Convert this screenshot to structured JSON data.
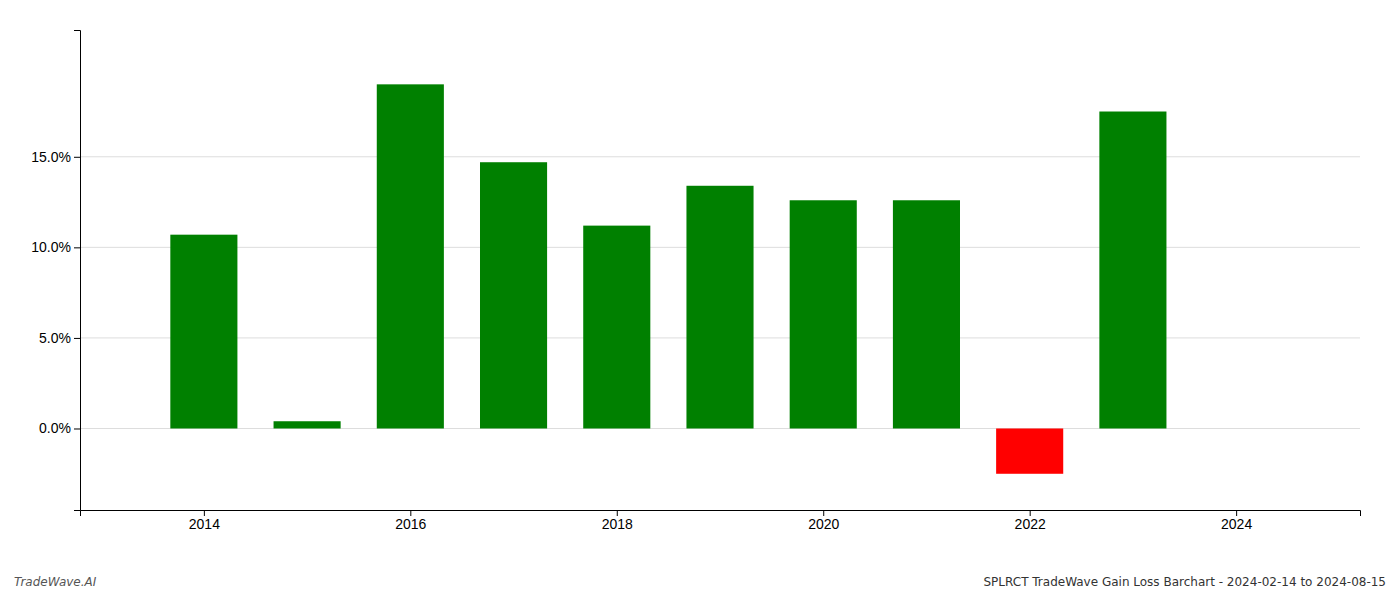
{
  "chart_data": {
    "type": "bar",
    "title": "SPLRCT TradeWave Gain Loss Barchart - 2024-02-14 to 2024-08-15",
    "annotations": [
      "TradeWave.AI"
    ],
    "x": [
      2014,
      2015,
      2016,
      2017,
      2018,
      2019,
      2020,
      2021,
      2022,
      2023
    ],
    "values": [
      0.107,
      0.004,
      0.19,
      0.147,
      0.112,
      0.134,
      0.126,
      0.126,
      -0.025,
      0.175
    ],
    "colors": [
      "#008000",
      "#008000",
      "#008000",
      "#008000",
      "#008000",
      "#008000",
      "#008000",
      "#008000",
      "#ff0000",
      "#008000"
    ],
    "xlim": [
      2012.8,
      2025.2
    ],
    "xticks": [
      2014,
      2016,
      2018,
      2020,
      2022,
      2024
    ],
    "ylim": [
      -0.045,
      0.22
    ],
    "yticks": [
      {
        "value": 0.0,
        "label": "0.0%"
      },
      {
        "value": 0.05,
        "label": "5.0%"
      },
      {
        "value": 0.1,
        "label": "10.0%"
      },
      {
        "value": 0.15,
        "label": "15.0%"
      }
    ],
    "grid": true
  }
}
